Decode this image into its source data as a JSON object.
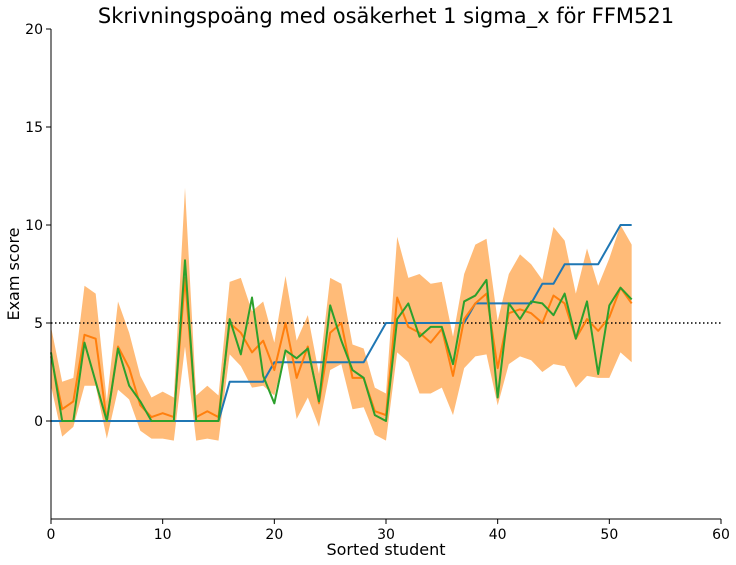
{
  "chart_data": {
    "type": "line",
    "title": "Skrivningspoäng med osäkerhet 1 sigma_x för FFM521",
    "xlabel": "Sorted student",
    "ylabel": "Exam score",
    "xlim": [
      0,
      60
    ],
    "ylim": [
      -5,
      20
    ],
    "xticks": [
      0,
      10,
      20,
      30,
      40,
      50,
      60
    ],
    "yticks": [
      0,
      5,
      10,
      15,
      20
    ],
    "grid": false,
    "reference_line": {
      "y": 5,
      "style": "dotted",
      "color": "#000000"
    },
    "x": [
      0,
      1,
      2,
      3,
      4,
      5,
      6,
      7,
      8,
      9,
      10,
      11,
      12,
      13,
      14,
      15,
      16,
      17,
      18,
      19,
      20,
      21,
      22,
      23,
      24,
      25,
      26,
      27,
      28,
      29,
      30,
      31,
      32,
      33,
      34,
      35,
      36,
      37,
      38,
      39,
      40,
      41,
      42,
      43,
      44,
      45,
      46,
      47,
      48,
      49,
      50,
      51,
      52
    ],
    "series": [
      {
        "color": "#1f77b4",
        "values": [
          0,
          0,
          0,
          0,
          0,
          0,
          0,
          0,
          0,
          0,
          0,
          0,
          0,
          0,
          0,
          0,
          2,
          2,
          2,
          2,
          3,
          3,
          3,
          3,
          3,
          3,
          3,
          3,
          3,
          4,
          5,
          5,
          5,
          5,
          5,
          5,
          5,
          5,
          6,
          6,
          6,
          6,
          6,
          6,
          7,
          7,
          8,
          8,
          8,
          8,
          9,
          10,
          10
        ]
      },
      {
        "color": "#ff7f0e",
        "values": [
          3.3,
          0.6,
          1.0,
          4.4,
          4.2,
          0.0,
          3.8,
          2.7,
          0.8,
          0.2,
          0.4,
          0.2,
          7.3,
          0.2,
          0.5,
          0.2,
          5.0,
          4.5,
          3.5,
          4.1,
          2.6,
          5.0,
          2.2,
          3.8,
          0.9,
          4.5,
          5.0,
          2.2,
          2.2,
          0.5,
          0.3,
          6.3,
          4.8,
          4.5,
          4.0,
          4.7,
          2.3,
          5.2,
          6.0,
          6.5,
          2.7,
          5.5,
          5.7,
          5.5,
          5.0,
          6.4,
          6.0,
          4.2,
          5.2,
          4.6,
          5.3,
          6.8,
          6.0
        ]
      },
      {
        "color": "#2ca02c",
        "values": [
          3.5,
          0.0,
          0.0,
          4.0,
          2.0,
          0.0,
          3.7,
          1.8,
          1.0,
          0.0,
          0.0,
          0.0,
          8.2,
          0.0,
          0.0,
          0.0,
          5.2,
          3.4,
          6.3,
          2.3,
          0.9,
          3.6,
          3.2,
          3.7,
          1.0,
          5.9,
          4.1,
          2.6,
          2.2,
          0.3,
          0.0,
          5.2,
          6.0,
          4.3,
          4.8,
          4.8,
          2.9,
          6.1,
          6.4,
          7.2,
          1.2,
          6.0,
          5.2,
          6.1,
          6.0,
          5.4,
          6.5,
          4.2,
          6.1,
          2.4,
          5.9,
          6.8,
          6.2
        ]
      }
    ],
    "uncertainty_band": {
      "color": "#ffbb78",
      "series_index": 1,
      "lower": [
        1.8,
        -0.8,
        -0.3,
        1.8,
        1.8,
        -0.9,
        1.6,
        1.1,
        -0.5,
        -0.9,
        -0.9,
        -1.0,
        3.8,
        -1.0,
        -0.9,
        -1.0,
        3.4,
        2.8,
        1.7,
        1.8,
        1.3,
        3.5,
        0.1,
        1.2,
        -0.3,
        2.6,
        2.9,
        0.6,
        0.7,
        -0.7,
        -1.0,
        3.5,
        3.0,
        1.4,
        1.4,
        1.7,
        0.3,
        2.7,
        3.3,
        3.4,
        0.8,
        2.9,
        3.3,
        3.1,
        2.5,
        2.9,
        2.8,
        1.7,
        2.3,
        2.2,
        2.2,
        3.5,
        3.0
      ],
      "upper": [
        4.8,
        2.0,
        2.2,
        6.9,
        6.5,
        1.0,
        6.1,
        4.5,
        2.3,
        1.2,
        1.5,
        1.2,
        11.9,
        1.3,
        1.8,
        1.3,
        7.1,
        7.3,
        5.6,
        6.1,
        4.0,
        7.4,
        4.1,
        5.4,
        2.4,
        7.3,
        7.0,
        3.9,
        3.7,
        1.7,
        1.4,
        9.4,
        7.3,
        7.5,
        7.0,
        7.1,
        4.3,
        7.5,
        9.0,
        9.3,
        5.1,
        7.5,
        8.5,
        8.0,
        7.2,
        9.9,
        9.2,
        6.5,
        8.8,
        6.9,
        8.3,
        10.0,
        9.0
      ]
    },
    "colors": {
      "axes": "#000000",
      "background": "#ffffff"
    }
  }
}
